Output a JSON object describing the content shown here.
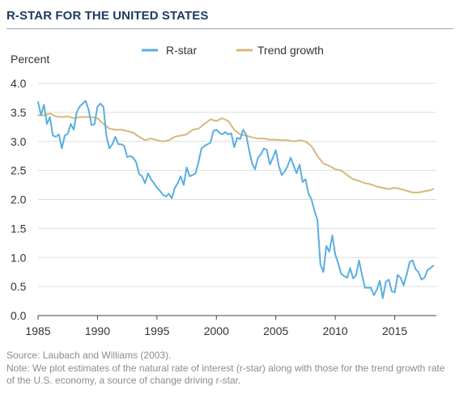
{
  "title": "R-STAR FOR THE UNITED STATES",
  "source": "Source: Laubach and Williams (2003).",
  "note": "Note: We plot estimates of the natural rate of interest (r-star) along with those for the trend growth rate of the U.S. economy, a source of change driving r-star.",
  "colors": {
    "rstar": "#5aaee0",
    "trend": "#d8b87a",
    "grid": "#dddddd",
    "axis": "#444444",
    "text": "#333333"
  },
  "chart_data": {
    "type": "line",
    "ylabel": "Percent",
    "xlabel": "",
    "xlim": [
      1985,
      2018.5
    ],
    "ylim": [
      0,
      4
    ],
    "xticks": [
      1985,
      1990,
      1995,
      2000,
      2005,
      2010,
      2015
    ],
    "yticks": [
      "0.0",
      "0.5",
      "1.0",
      "1.5",
      "2.0",
      "2.5",
      "3.0",
      "3.5",
      "4.0"
    ],
    "grid": "horizontal",
    "legend_position": "top",
    "series": [
      {
        "name": "R-star",
        "x": [
          1985.0,
          1985.25,
          1985.5,
          1985.75,
          1986.0,
          1986.25,
          1986.5,
          1986.75,
          1987.0,
          1987.25,
          1987.5,
          1987.75,
          1988.0,
          1988.25,
          1988.5,
          1988.75,
          1989.0,
          1989.25,
          1989.5,
          1989.75,
          1990.0,
          1990.25,
          1990.5,
          1990.75,
          1991.0,
          1991.25,
          1991.5,
          1991.75,
          1992.0,
          1992.25,
          1992.5,
          1992.75,
          1993.0,
          1993.25,
          1993.5,
          1993.75,
          1994.0,
          1994.25,
          1994.5,
          1994.75,
          1995.0,
          1995.25,
          1995.5,
          1995.75,
          1996.0,
          1996.25,
          1996.5,
          1996.75,
          1997.0,
          1997.25,
          1997.5,
          1997.75,
          1998.0,
          1998.25,
          1998.5,
          1998.75,
          1999.0,
          1999.25,
          1999.5,
          1999.75,
          2000.0,
          2000.25,
          2000.5,
          2000.75,
          2001.0,
          2001.25,
          2001.5,
          2001.75,
          2002.0,
          2002.25,
          2002.5,
          2002.75,
          2003.0,
          2003.25,
          2003.5,
          2003.75,
          2004.0,
          2004.25,
          2004.5,
          2004.75,
          2005.0,
          2005.25,
          2005.5,
          2005.75,
          2006.0,
          2006.25,
          2006.5,
          2006.75,
          2007.0,
          2007.25,
          2007.5,
          2007.75,
          2008.0,
          2008.25,
          2008.5,
          2008.75,
          2009.0,
          2009.25,
          2009.5,
          2009.75,
          2010.0,
          2010.25,
          2010.5,
          2010.75,
          2011.0,
          2011.25,
          2011.5,
          2011.75,
          2012.0,
          2012.25,
          2012.5,
          2012.75,
          2013.0,
          2013.25,
          2013.5,
          2013.75,
          2014.0,
          2014.25,
          2014.5,
          2014.75,
          2015.0,
          2015.25,
          2015.5,
          2015.75,
          2016.0,
          2016.25,
          2016.5,
          2016.75,
          2017.0,
          2017.25,
          2017.5,
          2017.75,
          2018.0,
          2018.25
        ],
        "values": [
          3.68,
          3.45,
          3.63,
          3.3,
          3.42,
          3.1,
          3.08,
          3.12,
          2.88,
          3.1,
          3.13,
          3.3,
          3.2,
          3.5,
          3.6,
          3.65,
          3.7,
          3.55,
          3.28,
          3.3,
          3.6,
          3.65,
          3.6,
          3.1,
          2.88,
          2.95,
          3.08,
          2.95,
          2.95,
          2.92,
          2.73,
          2.75,
          2.72,
          2.64,
          2.44,
          2.4,
          2.28,
          2.45,
          2.35,
          2.28,
          2.2,
          2.15,
          2.08,
          2.05,
          2.1,
          2.02,
          2.2,
          2.28,
          2.4,
          2.25,
          2.55,
          2.4,
          2.42,
          2.45,
          2.65,
          2.88,
          2.92,
          2.95,
          2.98,
          3.18,
          3.2,
          3.15,
          3.12,
          3.16,
          3.12,
          3.14,
          2.9,
          3.06,
          3.04,
          3.2,
          3.12,
          2.85,
          2.62,
          2.52,
          2.72,
          2.78,
          2.88,
          2.85,
          2.6,
          2.72,
          2.85,
          2.58,
          2.42,
          2.48,
          2.58,
          2.72,
          2.58,
          2.45,
          2.6,
          2.3,
          2.35,
          2.1,
          2.0,
          1.8,
          1.65,
          0.88,
          0.75,
          1.2,
          1.1,
          1.38,
          1.05,
          0.9,
          0.72,
          0.68,
          0.65,
          0.82,
          0.64,
          0.7,
          0.95,
          0.7,
          0.48,
          0.48,
          0.48,
          0.35,
          0.45,
          0.6,
          0.3,
          0.58,
          0.62,
          0.42,
          0.4,
          0.7,
          0.65,
          0.52,
          0.7,
          0.92,
          0.95,
          0.8,
          0.75,
          0.62,
          0.65,
          0.78,
          0.82,
          0.86
        ]
      },
      {
        "name": "Trend growth",
        "x": [
          1985.0,
          1985.5,
          1986.0,
          1986.5,
          1987.0,
          1987.5,
          1988.0,
          1988.5,
          1989.0,
          1989.5,
          1990.0,
          1990.5,
          1991.0,
          1991.5,
          1992.0,
          1992.5,
          1993.0,
          1993.5,
          1994.0,
          1994.5,
          1995.0,
          1995.5,
          1996.0,
          1996.5,
          1997.0,
          1997.5,
          1998.0,
          1998.5,
          1999.0,
          1999.5,
          2000.0,
          2000.5,
          2001.0,
          2001.5,
          2002.0,
          2002.5,
          2003.0,
          2003.5,
          2004.0,
          2004.5,
          2005.0,
          2005.5,
          2006.0,
          2006.5,
          2007.0,
          2007.5,
          2008.0,
          2008.5,
          2009.0,
          2009.5,
          2010.0,
          2010.5,
          2011.0,
          2011.5,
          2012.0,
          2012.5,
          2013.0,
          2013.5,
          2014.0,
          2014.5,
          2015.0,
          2015.5,
          2016.0,
          2016.5,
          2017.0,
          2017.5,
          2018.0,
          2018.25
        ],
        "values": [
          3.45,
          3.45,
          3.48,
          3.43,
          3.42,
          3.43,
          3.4,
          3.42,
          3.42,
          3.42,
          3.4,
          3.3,
          3.22,
          3.2,
          3.2,
          3.18,
          3.15,
          3.08,
          3.02,
          3.05,
          3.02,
          3.0,
          3.02,
          3.08,
          3.1,
          3.12,
          3.2,
          3.22,
          3.3,
          3.38,
          3.35,
          3.4,
          3.35,
          3.2,
          3.12,
          3.1,
          3.07,
          3.05,
          3.05,
          3.03,
          3.03,
          3.02,
          3.02,
          3.0,
          3.02,
          3.0,
          2.92,
          2.75,
          2.62,
          2.58,
          2.52,
          2.5,
          2.42,
          2.35,
          2.32,
          2.28,
          2.26,
          2.22,
          2.2,
          2.18,
          2.2,
          2.18,
          2.15,
          2.12,
          2.12,
          2.14,
          2.16,
          2.18
        ]
      }
    ]
  }
}
